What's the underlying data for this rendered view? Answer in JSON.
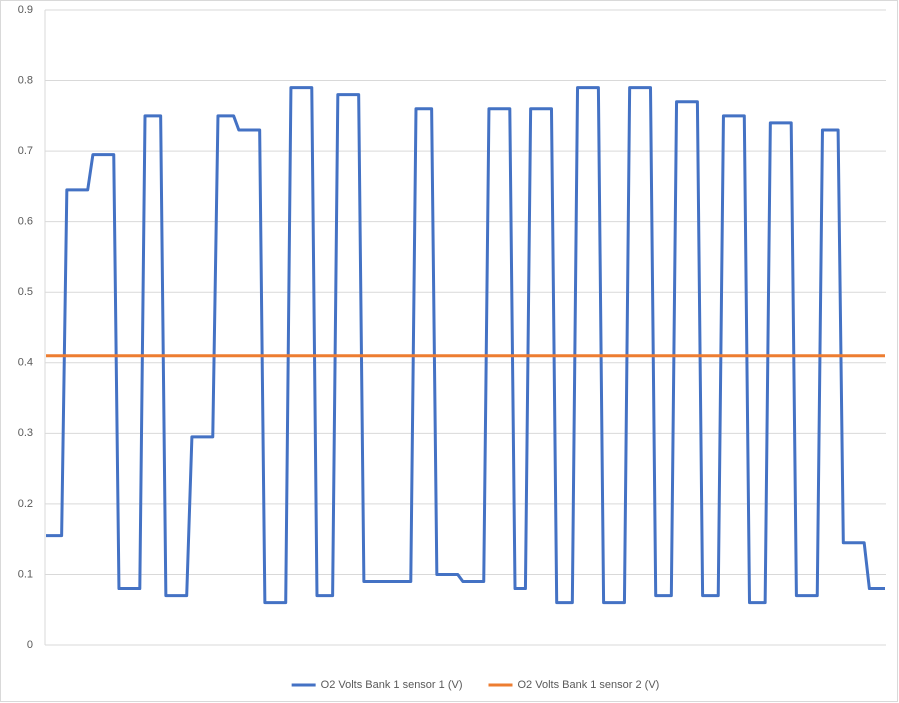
{
  "chart_data": {
    "type": "line",
    "ylim": [
      0,
      0.9
    ],
    "yticks": [
      0,
      0.1,
      0.2,
      0.3,
      0.4,
      0.5,
      0.6,
      0.7,
      0.8,
      0.9
    ],
    "grid": true,
    "legend": "bottom",
    "series": [
      {
        "name": "O2 Volts Bank 1 sensor 1 (V)",
        "color": "#4472c4",
        "values": [
          0.155,
          0.155,
          0.155,
          0.155,
          0.645,
          0.645,
          0.645,
          0.645,
          0.645,
          0.695,
          0.695,
          0.695,
          0.695,
          0.695,
          0.08,
          0.08,
          0.08,
          0.08,
          0.08,
          0.75,
          0.75,
          0.75,
          0.75,
          0.07,
          0.07,
          0.07,
          0.07,
          0.07,
          0.295,
          0.295,
          0.295,
          0.295,
          0.295,
          0.75,
          0.75,
          0.75,
          0.75,
          0.73,
          0.73,
          0.73,
          0.73,
          0.73,
          0.06,
          0.06,
          0.06,
          0.06,
          0.06,
          0.79,
          0.79,
          0.79,
          0.79,
          0.79,
          0.07,
          0.07,
          0.07,
          0.07,
          0.78,
          0.78,
          0.78,
          0.78,
          0.78,
          0.09,
          0.09,
          0.09,
          0.09,
          0.09,
          0.09,
          0.09,
          0.09,
          0.09,
          0.09,
          0.76,
          0.76,
          0.76,
          0.76,
          0.1,
          0.1,
          0.1,
          0.1,
          0.1,
          0.09,
          0.09,
          0.09,
          0.09,
          0.09,
          0.76,
          0.76,
          0.76,
          0.76,
          0.76,
          0.08,
          0.08,
          0.08,
          0.76,
          0.76,
          0.76,
          0.76,
          0.76,
          0.06,
          0.06,
          0.06,
          0.06,
          0.79,
          0.79,
          0.79,
          0.79,
          0.79,
          0.06,
          0.06,
          0.06,
          0.06,
          0.06,
          0.79,
          0.79,
          0.79,
          0.79,
          0.79,
          0.07,
          0.07,
          0.07,
          0.07,
          0.77,
          0.77,
          0.77,
          0.77,
          0.77,
          0.07,
          0.07,
          0.07,
          0.07,
          0.75,
          0.75,
          0.75,
          0.75,
          0.75,
          0.06,
          0.06,
          0.06,
          0.06,
          0.74,
          0.74,
          0.74,
          0.74,
          0.74,
          0.07,
          0.07,
          0.07,
          0.07,
          0.07,
          0.73,
          0.73,
          0.73,
          0.73,
          0.145,
          0.145,
          0.145,
          0.145,
          0.145,
          0.08,
          0.08,
          0.08,
          0.08
        ]
      },
      {
        "name": "O2 Volts Bank 1 sensor 2 (V)",
        "color": "#ed7d31",
        "values": [
          0.41,
          0.41,
          0.41,
          0.41,
          0.41,
          0.41,
          0.41,
          0.41,
          0.41,
          0.41,
          0.41,
          0.41,
          0.41,
          0.41,
          0.41,
          0.41,
          0.41,
          0.41,
          0.41,
          0.41,
          0.41,
          0.41,
          0.41,
          0.41,
          0.41,
          0.41,
          0.41,
          0.41,
          0.41,
          0.41,
          0.41,
          0.41,
          0.41,
          0.41,
          0.41,
          0.41,
          0.41,
          0.41,
          0.41,
          0.41,
          0.41,
          0.41,
          0.41,
          0.41,
          0.41,
          0.41,
          0.41,
          0.41,
          0.41,
          0.41,
          0.41,
          0.41,
          0.41,
          0.41,
          0.41,
          0.41,
          0.41,
          0.41,
          0.41,
          0.41,
          0.41,
          0.41,
          0.41,
          0.41,
          0.41,
          0.41,
          0.41,
          0.41,
          0.41,
          0.41,
          0.41,
          0.41,
          0.41,
          0.41,
          0.41,
          0.41,
          0.41,
          0.41,
          0.41,
          0.41,
          0.41,
          0.41,
          0.41,
          0.41,
          0.41,
          0.41,
          0.41,
          0.41,
          0.41,
          0.41,
          0.41,
          0.41,
          0.41,
          0.41,
          0.41,
          0.41,
          0.41,
          0.41,
          0.41,
          0.41,
          0.41,
          0.41,
          0.41,
          0.41,
          0.41,
          0.41,
          0.41,
          0.41,
          0.41,
          0.41,
          0.41,
          0.41,
          0.41,
          0.41,
          0.41,
          0.41,
          0.41,
          0.41,
          0.41,
          0.41,
          0.41,
          0.41,
          0.41,
          0.41,
          0.41,
          0.41,
          0.41,
          0.41,
          0.41,
          0.41,
          0.41,
          0.41,
          0.41,
          0.41,
          0.41,
          0.41,
          0.41,
          0.41,
          0.41,
          0.41,
          0.41,
          0.41,
          0.41,
          0.41,
          0.41,
          0.41,
          0.41,
          0.41,
          0.41,
          0.41,
          0.41,
          0.41,
          0.41,
          0.41,
          0.41,
          0.41,
          0.41,
          0.41,
          0.41,
          0.41,
          0.41,
          0.41
        ]
      }
    ]
  }
}
